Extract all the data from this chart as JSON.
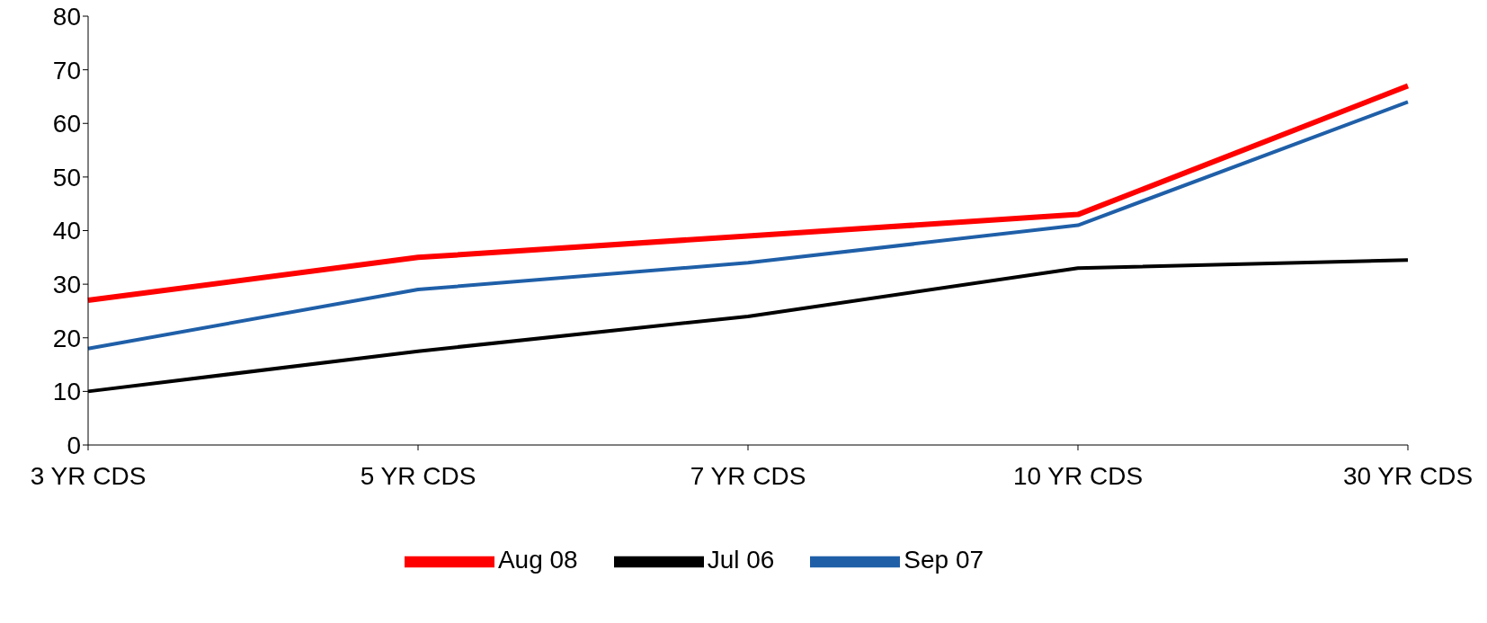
{
  "chart_data": {
    "type": "line",
    "categories": [
      "3 YR CDS",
      "5 YR CDS",
      "7 YR CDS",
      "10 YR CDS",
      "30 YR CDS"
    ],
    "series": [
      {
        "name": "Aug 08",
        "color": "#ff0000",
        "values": [
          27,
          35,
          39,
          43,
          67
        ]
      },
      {
        "name": "Sep 07",
        "color": "#1f5fa8",
        "values": [
          18,
          29,
          34,
          41,
          64
        ]
      },
      {
        "name": "Jul 06",
        "color": "#000000",
        "values": [
          10,
          17.5,
          24,
          33,
          34.5
        ]
      }
    ],
    "ylim": [
      0,
      80
    ],
    "yticks": [
      0,
      10,
      20,
      30,
      40,
      50,
      60,
      70,
      80
    ],
    "grid": false,
    "legend": "bottom",
    "marker": "none",
    "line_style": "solid"
  }
}
